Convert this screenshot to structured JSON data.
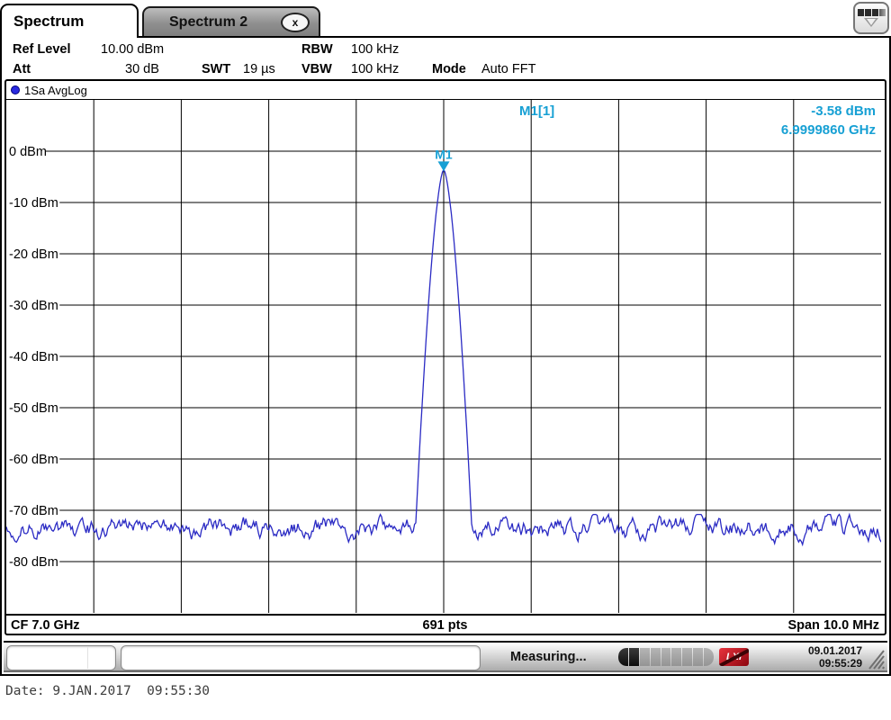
{
  "tabs": [
    {
      "label": "Spectrum",
      "active": true
    },
    {
      "label": "Spectrum 2",
      "active": false,
      "close_label": "x"
    }
  ],
  "header": {
    "ref_level_label": "Ref Level",
    "ref_level": "10.00 dBm",
    "att_label": "Att",
    "att": "30 dB",
    "swt_label": "SWT",
    "swt": "19 µs",
    "rbw_label": "RBW",
    "rbw": "100 kHz",
    "vbw_label": "VBW",
    "vbw": "100 kHz",
    "mode_label": "Mode",
    "mode": "Auto FFT"
  },
  "trace_info": {
    "label": "1Sa AvgLog"
  },
  "marker": {
    "name": "M1",
    "readout_label": "M1[1]",
    "level": "-3.58 dBm",
    "frequency": "6.9999860 GHz"
  },
  "axis_bar": {
    "cf": "CF 7.0 GHz",
    "points": "691 pts",
    "span": "Span 10.0 MHz"
  },
  "status_bar": {
    "measuring": "Measuring...",
    "lxi": "LXI",
    "date": "09.01.2017",
    "time": "09:55:29",
    "progress_segments": 9,
    "progress_filled": 2
  },
  "caption": "Date: 9.JAN.2017  09:55:30",
  "colors": {
    "trace": "#2b2bc4",
    "marker": "#17a0d4",
    "grid": "#000000"
  },
  "chart_data": {
    "type": "line",
    "title": "Spectrum trace (1Sa AvgLog)",
    "x_axis": {
      "center_ghz": 7.0,
      "span_mhz": 10.0,
      "points": 691,
      "left_label": "CF 7.0 GHz",
      "center_label": "691 pts",
      "right_label": "Span 10.0 MHz"
    },
    "y_axis": {
      "ref_level_dbm": 10,
      "db_per_div": 10,
      "divisions": 10,
      "ymin_dbm": -90,
      "tick_labels": [
        "0 dBm",
        "-10 dBm",
        "-20 dBm",
        "-30 dBm",
        "-40 dBm",
        "-50 dBm",
        "-60 dBm",
        "-70 dBm",
        "-80 dBm"
      ],
      "tick_values": [
        0,
        -10,
        -20,
        -30,
        -40,
        -50,
        -60,
        -70,
        -80
      ]
    },
    "grid": {
      "columns": 10,
      "rows": 10,
      "visible": true
    },
    "noise_floor_dbm": -73.5,
    "noise_peak_to_peak_db": 6,
    "peak": {
      "marker": "M1",
      "level_dbm": -3.58,
      "freq_ghz": 6.999986,
      "skirt_db_down_at_base": 66,
      "base_half_width_fraction": 0.031
    }
  }
}
